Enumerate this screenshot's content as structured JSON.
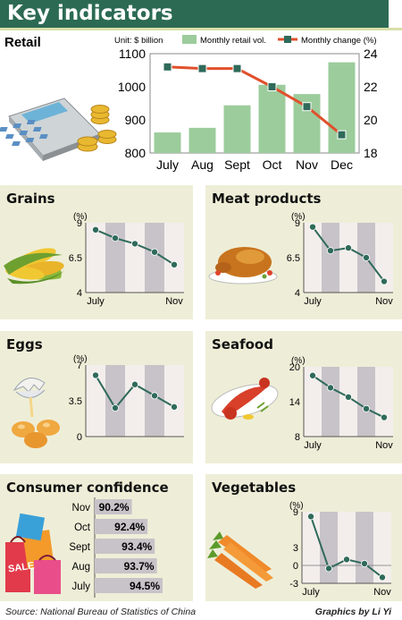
{
  "header": {
    "title": "Key indicators"
  },
  "colors": {
    "header_bg": "#2c6a54",
    "panel_bg": "#eeeed8",
    "bar_green": "#9ccc9c",
    "line_red": "#e0502c",
    "marker": "#2f6a5a",
    "stripe_dark": "#c8c3c8",
    "stripe_light": "#f3eeec",
    "small_line": "#2f6a5a",
    "confidence_bar": "#c8c3c8"
  },
  "icons": {
    "retail": "calculator-icon",
    "grains": "corn-icon",
    "meat": "roast-chicken-icon",
    "eggs": "eggs-icon",
    "seafood": "lobster-icon",
    "confidence": "shopping-bags-icon",
    "vegetables": "carrot-icon"
  },
  "footer": {
    "source": "Source: National Bureau of Statistics of China",
    "credit": "Graphics by Li Yi"
  },
  "chart_data": [
    {
      "id": "retail",
      "type": "bar",
      "title": "Retail",
      "unit_label": "Unit: $ billion",
      "legend": [
        "Monthly retail vol.",
        "Monthly change (%)"
      ],
      "categories": [
        "July",
        "Aug",
        "Sept",
        "Oct",
        "Nov",
        "Dec"
      ],
      "series": [
        {
          "name": "Monthly retail vol.",
          "type": "bar",
          "axis": "left",
          "values": [
            862,
            876,
            944,
            1006,
            978,
            1074
          ]
        },
        {
          "name": "Monthly change",
          "type": "line",
          "axis": "right",
          "values": [
            23.2,
            23.1,
            23.1,
            22.0,
            20.8,
            19.1
          ]
        }
      ],
      "ylim": [
        800,
        1100
      ],
      "yticks": [
        800,
        900,
        1000,
        1100
      ],
      "y2lim": [
        18,
        24
      ],
      "y2ticks": [
        18,
        20,
        22,
        24
      ],
      "grid": false
    },
    {
      "id": "grains",
      "type": "line",
      "title": "Grains",
      "unit_label": "(%)",
      "x_labels": [
        "July",
        "",
        "",
        "",
        "Nov"
      ],
      "values": [
        8.5,
        7.9,
        7.5,
        6.9,
        6.0
      ],
      "ylim": [
        4,
        9
      ],
      "yticks": [
        4,
        6.5,
        9
      ],
      "ytick_labels": [
        "4",
        "6.5",
        "9"
      ]
    },
    {
      "id": "meat",
      "type": "line",
      "title": "Meat products",
      "unit_label": "(%)",
      "x_labels": [
        "July",
        "",
        "",
        "",
        "Nov"
      ],
      "values": [
        8.7,
        7.0,
        7.2,
        6.5,
        4.8
      ],
      "ylim": [
        4,
        9
      ],
      "yticks": [
        4,
        6.5,
        9
      ],
      "ytick_labels": [
        "4",
        "6.5",
        "9"
      ]
    },
    {
      "id": "eggs",
      "type": "line",
      "title": "Eggs",
      "unit_label": "(%)",
      "x_labels": [
        "",
        "",
        "",
        "",
        ""
      ],
      "values": [
        6.0,
        2.8,
        5.1,
        4.0,
        2.9
      ],
      "ylim": [
        0,
        7
      ],
      "yticks": [
        0,
        3.5,
        7
      ],
      "ytick_labels": [
        "0",
        "3.5",
        "7"
      ]
    },
    {
      "id": "seafood",
      "type": "line",
      "title": "Seafood",
      "unit_label": "(%)",
      "x_labels": [
        "July",
        "",
        "",
        "",
        "Nov"
      ],
      "values": [
        18.5,
        16.4,
        14.8,
        12.8,
        11.3
      ],
      "ylim": [
        8,
        20
      ],
      "yticks": [
        8,
        14,
        20
      ],
      "ytick_labels": [
        "8",
        "14",
        "20"
      ]
    },
    {
      "id": "confidence",
      "type": "bar",
      "orientation": "horizontal",
      "title": "Consumer confidence",
      "categories": [
        "Nov",
        "Oct",
        "Sept",
        "Aug",
        "July"
      ],
      "values": [
        90.2,
        92.4,
        93.4,
        93.7,
        94.5
      ],
      "value_labels": [
        "90.2%",
        "92.4%",
        "93.4%",
        "93.7%",
        "94.5%"
      ],
      "xlim": [
        85,
        96
      ]
    },
    {
      "id": "vegetables",
      "type": "line",
      "title": "Vegetables",
      "unit_label": "(%)",
      "x_labels": [
        "July",
        "",
        "",
        "",
        "Nov"
      ],
      "values": [
        8.2,
        -0.5,
        1.0,
        0.3,
        -2.0
      ],
      "ylim": [
        -3,
        9
      ],
      "yticks": [
        -3,
        0,
        3,
        9
      ],
      "ytick_labels": [
        "-3",
        "0",
        "3",
        "9"
      ]
    }
  ]
}
